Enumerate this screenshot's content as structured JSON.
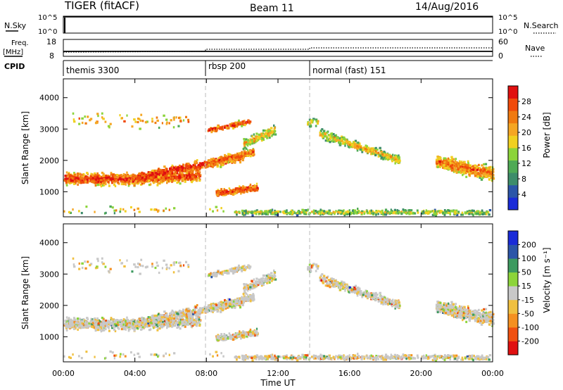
{
  "header": {
    "title": "TIGER (fitACF)",
    "beam": "Beam 11",
    "date": "14/Aug/2016"
  },
  "nsky_panel": {
    "left_label": "N.Sky",
    "right_label": "N.Search",
    "left_ticks": [
      "10^5",
      "10^0"
    ],
    "right_ticks": [
      "10^5",
      "10^0"
    ]
  },
  "freq_panel": {
    "left_label_line1": "Freq.",
    "left_label_line2": "[MHz]",
    "right_label": "Nave",
    "left_ticks": [
      "18",
      "8"
    ],
    "right_ticks": [
      "60",
      "0"
    ]
  },
  "cpid_panel": {
    "label": "CPID",
    "segments": [
      {
        "name": "themis 3300",
        "start_hour": 0
      },
      {
        "name": "rbsp 200",
        "start_hour": 8
      },
      {
        "name": "normal (fast) 151",
        "start_hour": 14
      }
    ]
  },
  "colors": {
    "power": [
      "#1a2bd8",
      "#2b55a8",
      "#3d8c6a",
      "#4faa55",
      "#8cd43a",
      "#f0d020",
      "#f5a623",
      "#f07a10",
      "#f04a0a",
      "#e01010"
    ],
    "velocity": [
      "#e01010",
      "#f05010",
      "#f59020",
      "#f0c040",
      "#c8c8c8",
      "#8cd43a",
      "#3d9a60",
      "#2b55a8",
      "#1a2bd8"
    ]
  },
  "chart_data": [
    {
      "type": "heatmap",
      "name": "power",
      "xlabel": "",
      "ylabel": "Slant Range [km]",
      "xlim": [
        0,
        24
      ],
      "ylim": [
        200,
        4600
      ],
      "y_ticks": [
        1000,
        2000,
        3000,
        4000
      ],
      "colorbar": {
        "label": "Power [dB]",
        "ticks": [
          4,
          8,
          12,
          16,
          20,
          24,
          28
        ],
        "range": [
          0,
          32
        ]
      }
    },
    {
      "type": "heatmap",
      "name": "velocity",
      "xlabel": "Time UT",
      "ylabel": "Slant Range [km]",
      "xlim": [
        0,
        24
      ],
      "ylim": [
        200,
        4600
      ],
      "x_tick_labels": [
        "00:00",
        "04:00",
        "08:00",
        "12:00",
        "16:00",
        "20:00",
        "00:00"
      ],
      "x_tick_hours": [
        0,
        4,
        8,
        12,
        16,
        20,
        24
      ],
      "y_ticks": [
        1000,
        2000,
        3000,
        4000
      ],
      "colorbar": {
        "label": "Velocity [m s⁻¹]",
        "ticks": [
          -200,
          -100,
          -50,
          -15,
          15,
          50,
          100,
          200
        ]
      }
    }
  ]
}
